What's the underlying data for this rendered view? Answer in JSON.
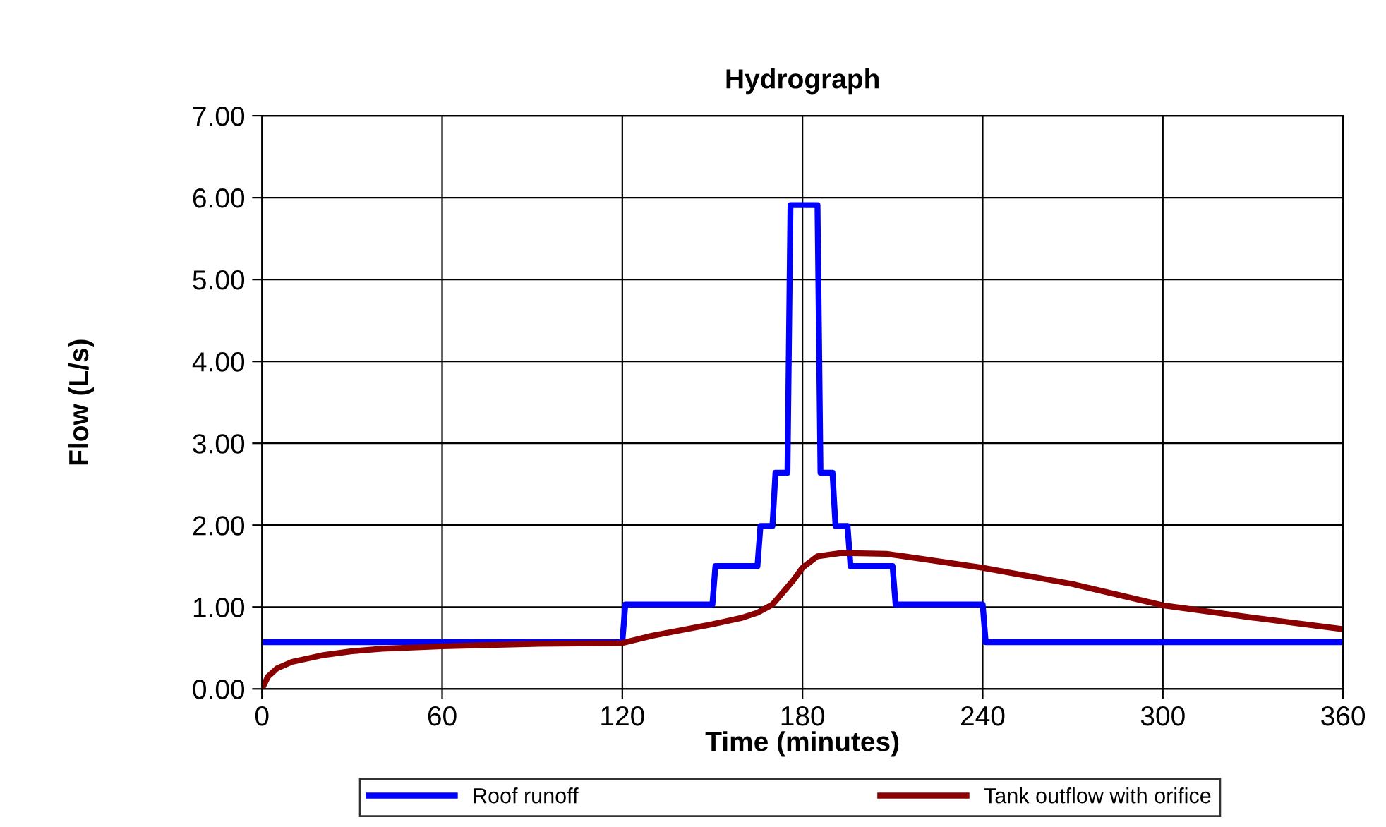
{
  "chart_data": {
    "type": "line",
    "title": "Hydrograph",
    "xlabel": "Time (minutes)",
    "ylabel": "Flow (L/s)",
    "series": [
      {
        "name": "Roof runoff",
        "color": "#0000ff",
        "x": [
          0,
          120,
          121,
          150,
          151,
          165,
          166,
          170,
          171,
          175,
          176,
          185,
          186,
          190,
          191,
          195,
          196,
          210,
          211,
          240,
          241,
          360
        ],
        "values": [
          0.57,
          0.57,
          1.03,
          1.03,
          1.5,
          1.5,
          1.99,
          1.99,
          2.64,
          2.64,
          5.91,
          5.91,
          2.64,
          2.64,
          1.99,
          1.99,
          1.5,
          1.5,
          1.03,
          1.03,
          0.57,
          0.57
        ]
      },
      {
        "name": "Tank outflow with orifice",
        "color": "#8b0000",
        "x": [
          0,
          2,
          5,
          10,
          20,
          30,
          40,
          60,
          90,
          120,
          130,
          140,
          150,
          160,
          165,
          170,
          174,
          177,
          180,
          185,
          193,
          208,
          240,
          270,
          300,
          330,
          360
        ],
        "values": [
          0,
          0.15,
          0.25,
          0.33,
          0.41,
          0.46,
          0.49,
          0.52,
          0.55,
          0.56,
          0.65,
          0.72,
          0.79,
          0.87,
          0.93,
          1.03,
          1.2,
          1.33,
          1.48,
          1.62,
          1.66,
          1.65,
          1.48,
          1.28,
          1.02,
          0.87,
          0.73
        ]
      }
    ],
    "xlim": [
      0,
      360
    ],
    "xticks": [
      0,
      60,
      120,
      180,
      240,
      300,
      360
    ],
    "ylim": [
      0,
      7
    ],
    "yticks": [
      {
        "value": 0,
        "label": "0.00"
      },
      {
        "value": 1,
        "label": "1.00"
      },
      {
        "value": 2,
        "label": "2.00"
      },
      {
        "value": 3,
        "label": "3.00"
      },
      {
        "value": 4,
        "label": "4.00"
      },
      {
        "value": 5,
        "label": "5.00"
      },
      {
        "value": 6,
        "label": "6.00"
      },
      {
        "value": 7,
        "label": "7.00"
      }
    ],
    "grid": true,
    "legend": "bottom",
    "marker": "none",
    "line_style": "solid"
  }
}
